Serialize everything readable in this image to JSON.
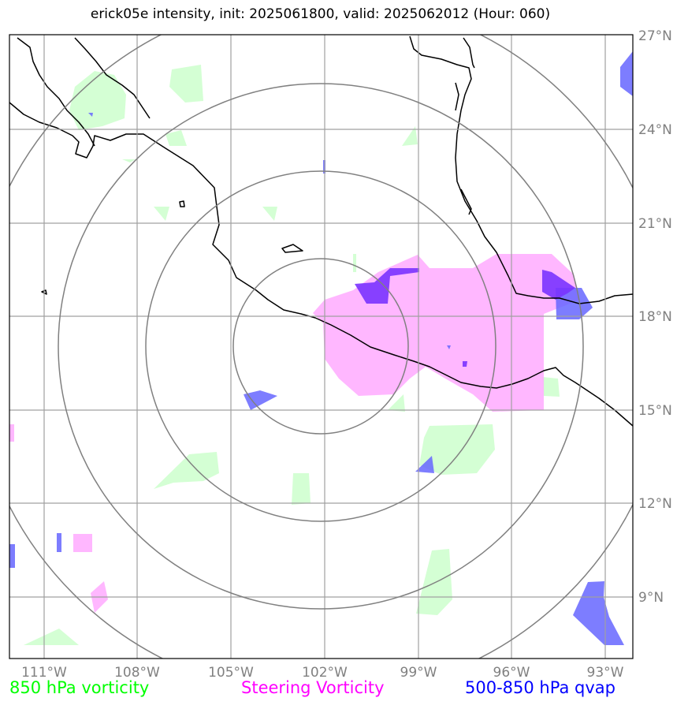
{
  "title": "erick05e intensity, init: 2025061800, valid: 2025062012 (Hour: 060)",
  "map": {
    "lon_ticks": [
      "111°W",
      "108°W",
      "105°W",
      "102°W",
      "99°W",
      "96°W",
      "93°W"
    ],
    "lat_ticks": [
      "27°N",
      "24°N",
      "21°N",
      "18°N",
      "15°N",
      "12°N",
      "9°N"
    ],
    "extent": {
      "lon_min": -112.1,
      "lon_max": -92.2,
      "lat_min": 7.1,
      "lat_max": 27.0
    },
    "center": {
      "lon": -102.0,
      "lat": 17.2
    },
    "gridline_color": "#a0a0a0",
    "range_ring_color": "#808080"
  },
  "legend": [
    {
      "label": "850 hPa vorticity",
      "color": "#00ff00"
    },
    {
      "label": "Steering Vorticity",
      "color": "#ff00ff"
    },
    {
      "label": "500-850 hPa qvap",
      "color": "#0000ff"
    }
  ],
  "layer_colors": {
    "vorticity_850": "#ccffcc",
    "steering_vorticity": "#ffaaff",
    "qvap": "#6666ff",
    "overlap": "#7a33ff"
  }
}
